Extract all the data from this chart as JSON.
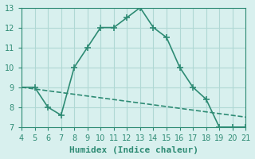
{
  "xlabel": "Humidex (Indice chaleur)",
  "ylabel": "",
  "xlim": [
    4,
    21
  ],
  "ylim": [
    7,
    13
  ],
  "xticks": [
    4,
    5,
    6,
    7,
    8,
    9,
    10,
    11,
    12,
    13,
    14,
    15,
    16,
    17,
    18,
    19,
    20,
    21
  ],
  "yticks": [
    7,
    8,
    9,
    10,
    11,
    12,
    13
  ],
  "line1_x": [
    4,
    5,
    6,
    7,
    8,
    9,
    10,
    11,
    12,
    13,
    14,
    15,
    16,
    17,
    18,
    19,
    20,
    21
  ],
  "line1_y": [
    9,
    9,
    8,
    7.6,
    10,
    11,
    12,
    12,
    12.5,
    13,
    12,
    11.5,
    10,
    9,
    8.4,
    7,
    7,
    7
  ],
  "line2_x": [
    4,
    21
  ],
  "line2_y": [
    9,
    7.5
  ],
  "line_color": "#2e8b74",
  "bg_color": "#d8f0ee",
  "grid_color": "#b0d8d4",
  "tick_color": "#2e8b74",
  "label_color": "#2e8b74",
  "marker": "+",
  "markersize": 6,
  "linewidth": 1.2
}
